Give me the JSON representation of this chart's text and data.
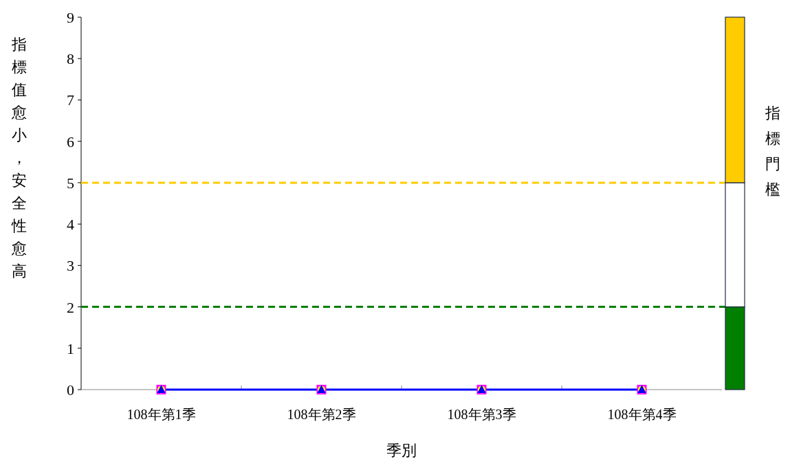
{
  "chart_data": [
    {
      "type": "line",
      "categories": [
        "108年第1季",
        "108年第2季",
        "108年第3季",
        "108年第4季"
      ],
      "xlabel": "季別",
      "ylabel": "指標值愈小，安全性愈高",
      "ylim": [
        0,
        9
      ],
      "yticks": [
        0,
        1,
        2,
        3,
        4,
        5,
        6,
        7,
        8,
        9
      ],
      "grid": false,
      "series": [
        {
          "type": "scatter",
          "color": "#ff00ff",
          "marker": "square",
          "values": [
            0,
            0,
            0,
            0
          ]
        },
        {
          "type": "scatter",
          "color": "#ffff00",
          "marker": "circle",
          "values": [
            0,
            0,
            0,
            0
          ]
        },
        {
          "type": "line",
          "color": "#0000ff",
          "marker": "triangle",
          "values": [
            0,
            0,
            0,
            0
          ]
        }
      ],
      "ref_lines": [
        {
          "axis": "y",
          "value": 5,
          "color": "#ffcc00",
          "line_style": "dashed"
        },
        {
          "axis": "y",
          "value": 2,
          "color": "#007f00",
          "line_style": "dashed"
        }
      ]
    },
    {
      "type": "bar",
      "stacked": true,
      "categories": [
        null
      ],
      "ylabel": "指標門檻",
      "ylim": [
        0,
        9
      ],
      "series": [
        {
          "color": "#007f00",
          "values": [
            2
          ]
        },
        {
          "color": "#ffffff",
          "values": [
            3
          ]
        },
        {
          "color": "#ffcc00",
          "values": [
            4
          ]
        }
      ]
    }
  ]
}
